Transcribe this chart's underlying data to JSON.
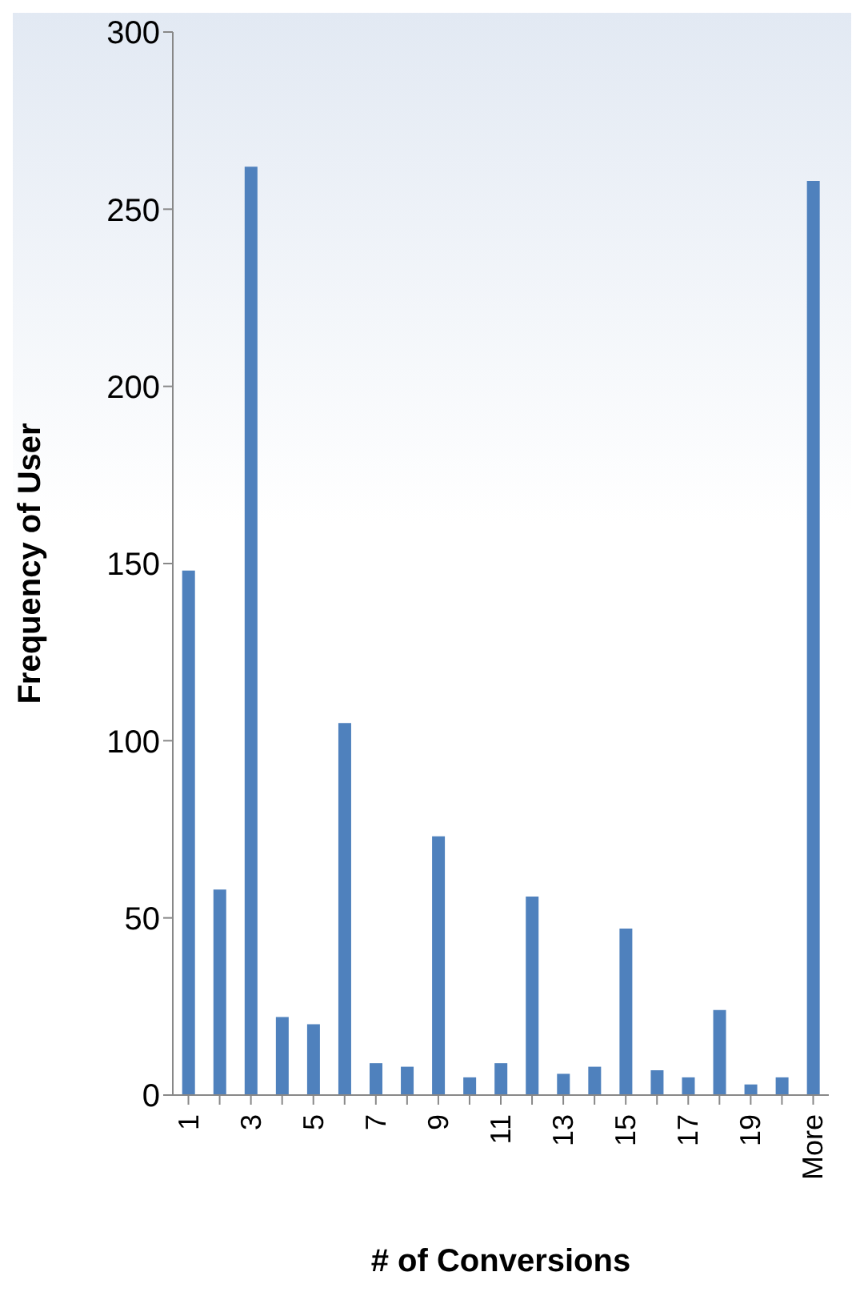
{
  "chart_data": {
    "type": "bar",
    "xlabel": "# of Conversions",
    "ylabel": "Frequency of User",
    "categories": [
      "1",
      null,
      "3",
      null,
      "5",
      null,
      "7",
      null,
      "9",
      null,
      "11",
      null,
      "13",
      null,
      "15",
      null,
      "17",
      null,
      "19",
      null,
      "More"
    ],
    "values": [
      148,
      58,
      262,
      22,
      20,
      105,
      9,
      8,
      73,
      5,
      9,
      56,
      6,
      8,
      47,
      7,
      5,
      24,
      3,
      5,
      258
    ],
    "color": "#4f81bd",
    "ylim": [
      0,
      300
    ],
    "yticks": [
      0,
      50,
      100,
      150,
      200,
      250,
      300
    ],
    "grid": false,
    "legend": false
  }
}
